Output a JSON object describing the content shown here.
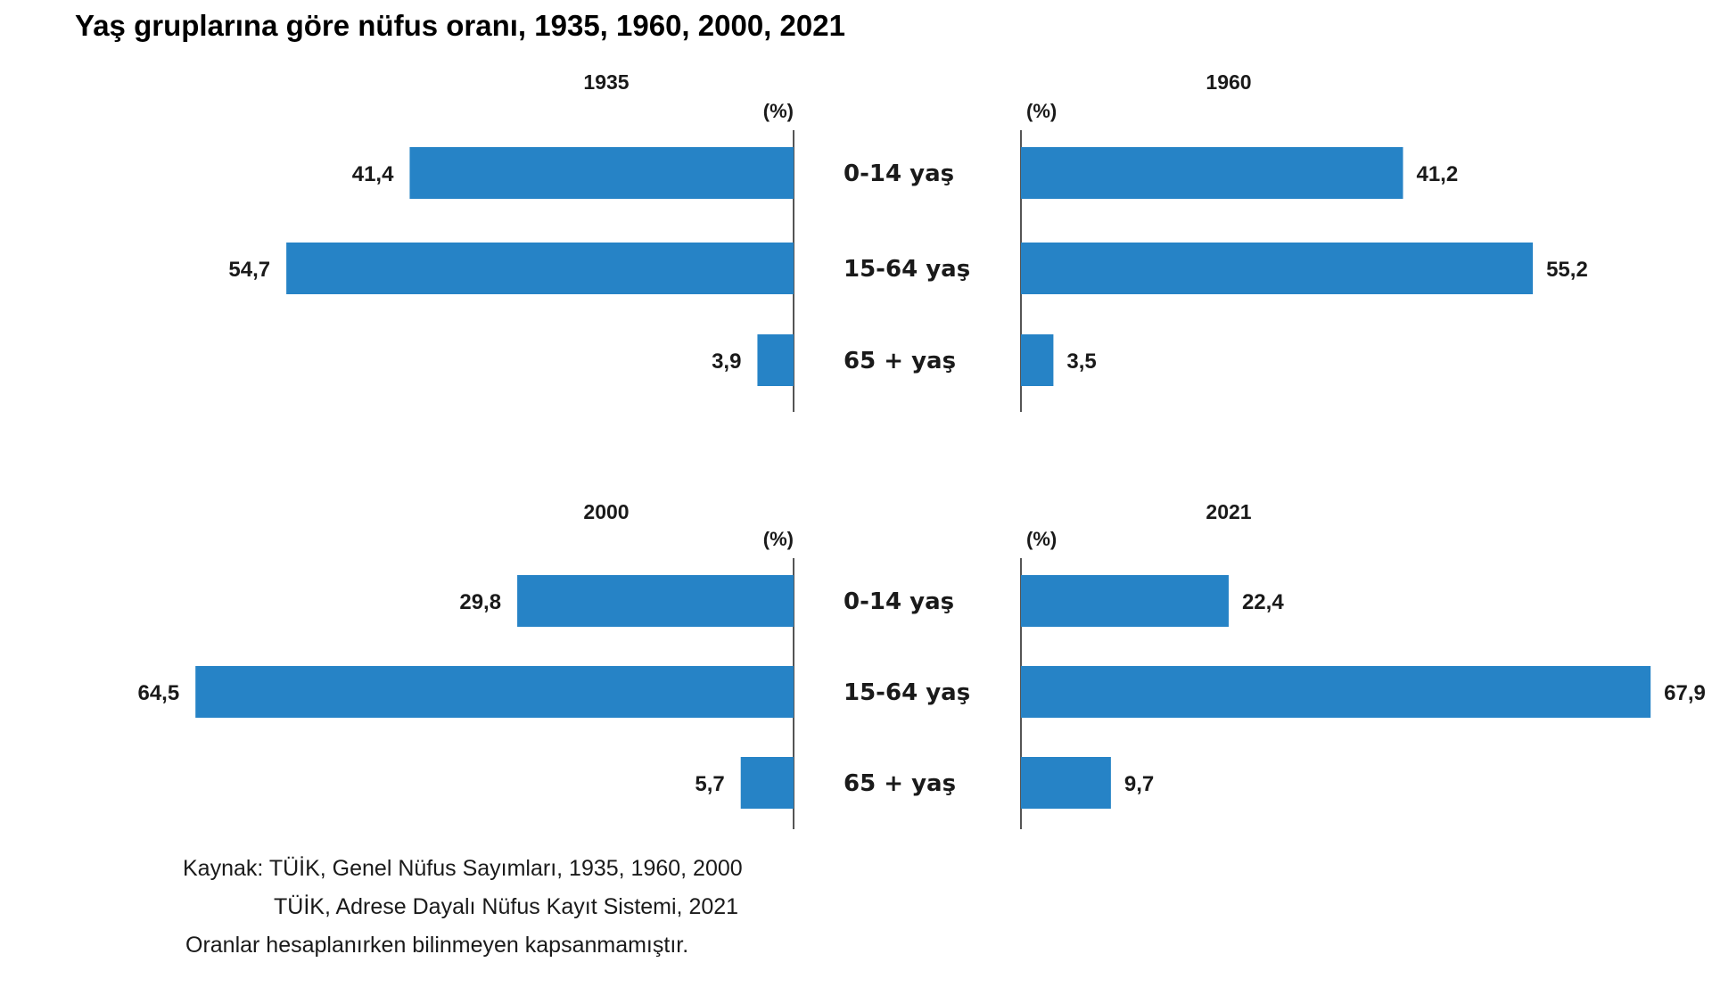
{
  "title": "Yaş gruplarına göre nüfus oranı, 1935, 1960, 2000, 2021",
  "colors": {
    "bar": "#2683c6",
    "axis": "#555555",
    "text": "#1a1a1a"
  },
  "chart_data": [
    {
      "type": "bar",
      "orientation": "horizontal",
      "direction": "left",
      "title": "1935",
      "unit_label": "(%)",
      "categories": [
        "0-14 yaş",
        "15-64 yaş",
        "65 + yaş"
      ],
      "values": [
        41.4,
        54.7,
        3.9
      ],
      "value_labels": [
        "41,4",
        "54,7",
        "3,9"
      ]
    },
    {
      "type": "bar",
      "orientation": "horizontal",
      "direction": "right",
      "title": "1960",
      "unit_label": "(%)",
      "categories": [
        "0-14 yaş",
        "15-64 yaş",
        "65 + yaş"
      ],
      "values": [
        41.2,
        55.2,
        3.5
      ],
      "value_labels": [
        "41,2",
        "55,2",
        "3,5"
      ]
    },
    {
      "type": "bar",
      "orientation": "horizontal",
      "direction": "left",
      "title": "2000",
      "unit_label": "(%)",
      "categories": [
        "0-14 yaş",
        "15-64 yaş",
        "65 + yaş"
      ],
      "values": [
        29.8,
        64.5,
        5.7
      ],
      "value_labels": [
        "29,8",
        "64,5",
        "5,7"
      ]
    },
    {
      "type": "bar",
      "orientation": "horizontal",
      "direction": "right",
      "title": "2021",
      "unit_label": "(%)",
      "categories": [
        "0-14 yaş",
        "15-64 yaş",
        "65 + yaş"
      ],
      "values": [
        22.4,
        67.9,
        9.7
      ],
      "value_labels": [
        "22,4",
        "67,9",
        "9,7"
      ]
    }
  ],
  "footnotes": {
    "source_line1": "Kaynak: TÜİK, Genel Nüfus Sayımları, 1935, 1960, 2000",
    "source_line2": "TÜİK, Adrese Dayalı Nüfus Kayıt Sistemi, 2021",
    "note": "Oranlar hesaplanırken bilinmeyen kapsanmamıştır."
  }
}
